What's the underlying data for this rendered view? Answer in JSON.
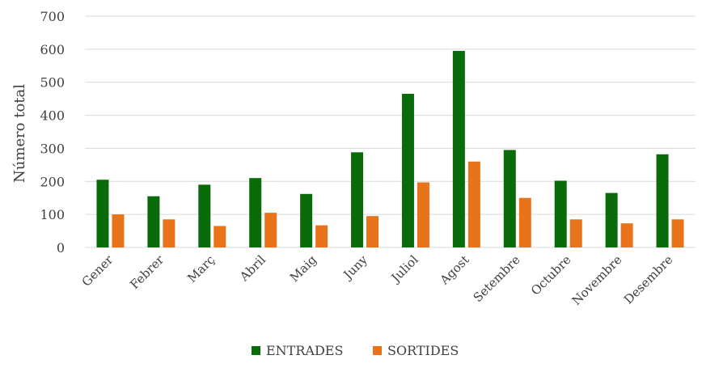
{
  "chart_data": {
    "type": "bar",
    "categories": [
      "Gener",
      "Febrer",
      "Març",
      "Abril",
      "Maig",
      "Juny",
      "Juliol",
      "Agost",
      "Setembre",
      "Octubre",
      "Novembre",
      "Desembre"
    ],
    "series": [
      {
        "name": "ENTRADES",
        "color": "#0a6b0a",
        "values": [
          205,
          155,
          190,
          210,
          162,
          288,
          465,
          595,
          295,
          202,
          165,
          282
        ]
      },
      {
        "name": "SORTIDES",
        "color": "#e8731a",
        "values": [
          100,
          85,
          65,
          105,
          67,
          95,
          197,
          260,
          150,
          85,
          73,
          85
        ]
      }
    ],
    "ylabel": "Número total",
    "xlabel": "",
    "ylim": [
      0,
      700
    ],
    "yticks": [
      0,
      100,
      200,
      300,
      400,
      500,
      600,
      700
    ],
    "grid": true,
    "legend_position": "bottom"
  }
}
